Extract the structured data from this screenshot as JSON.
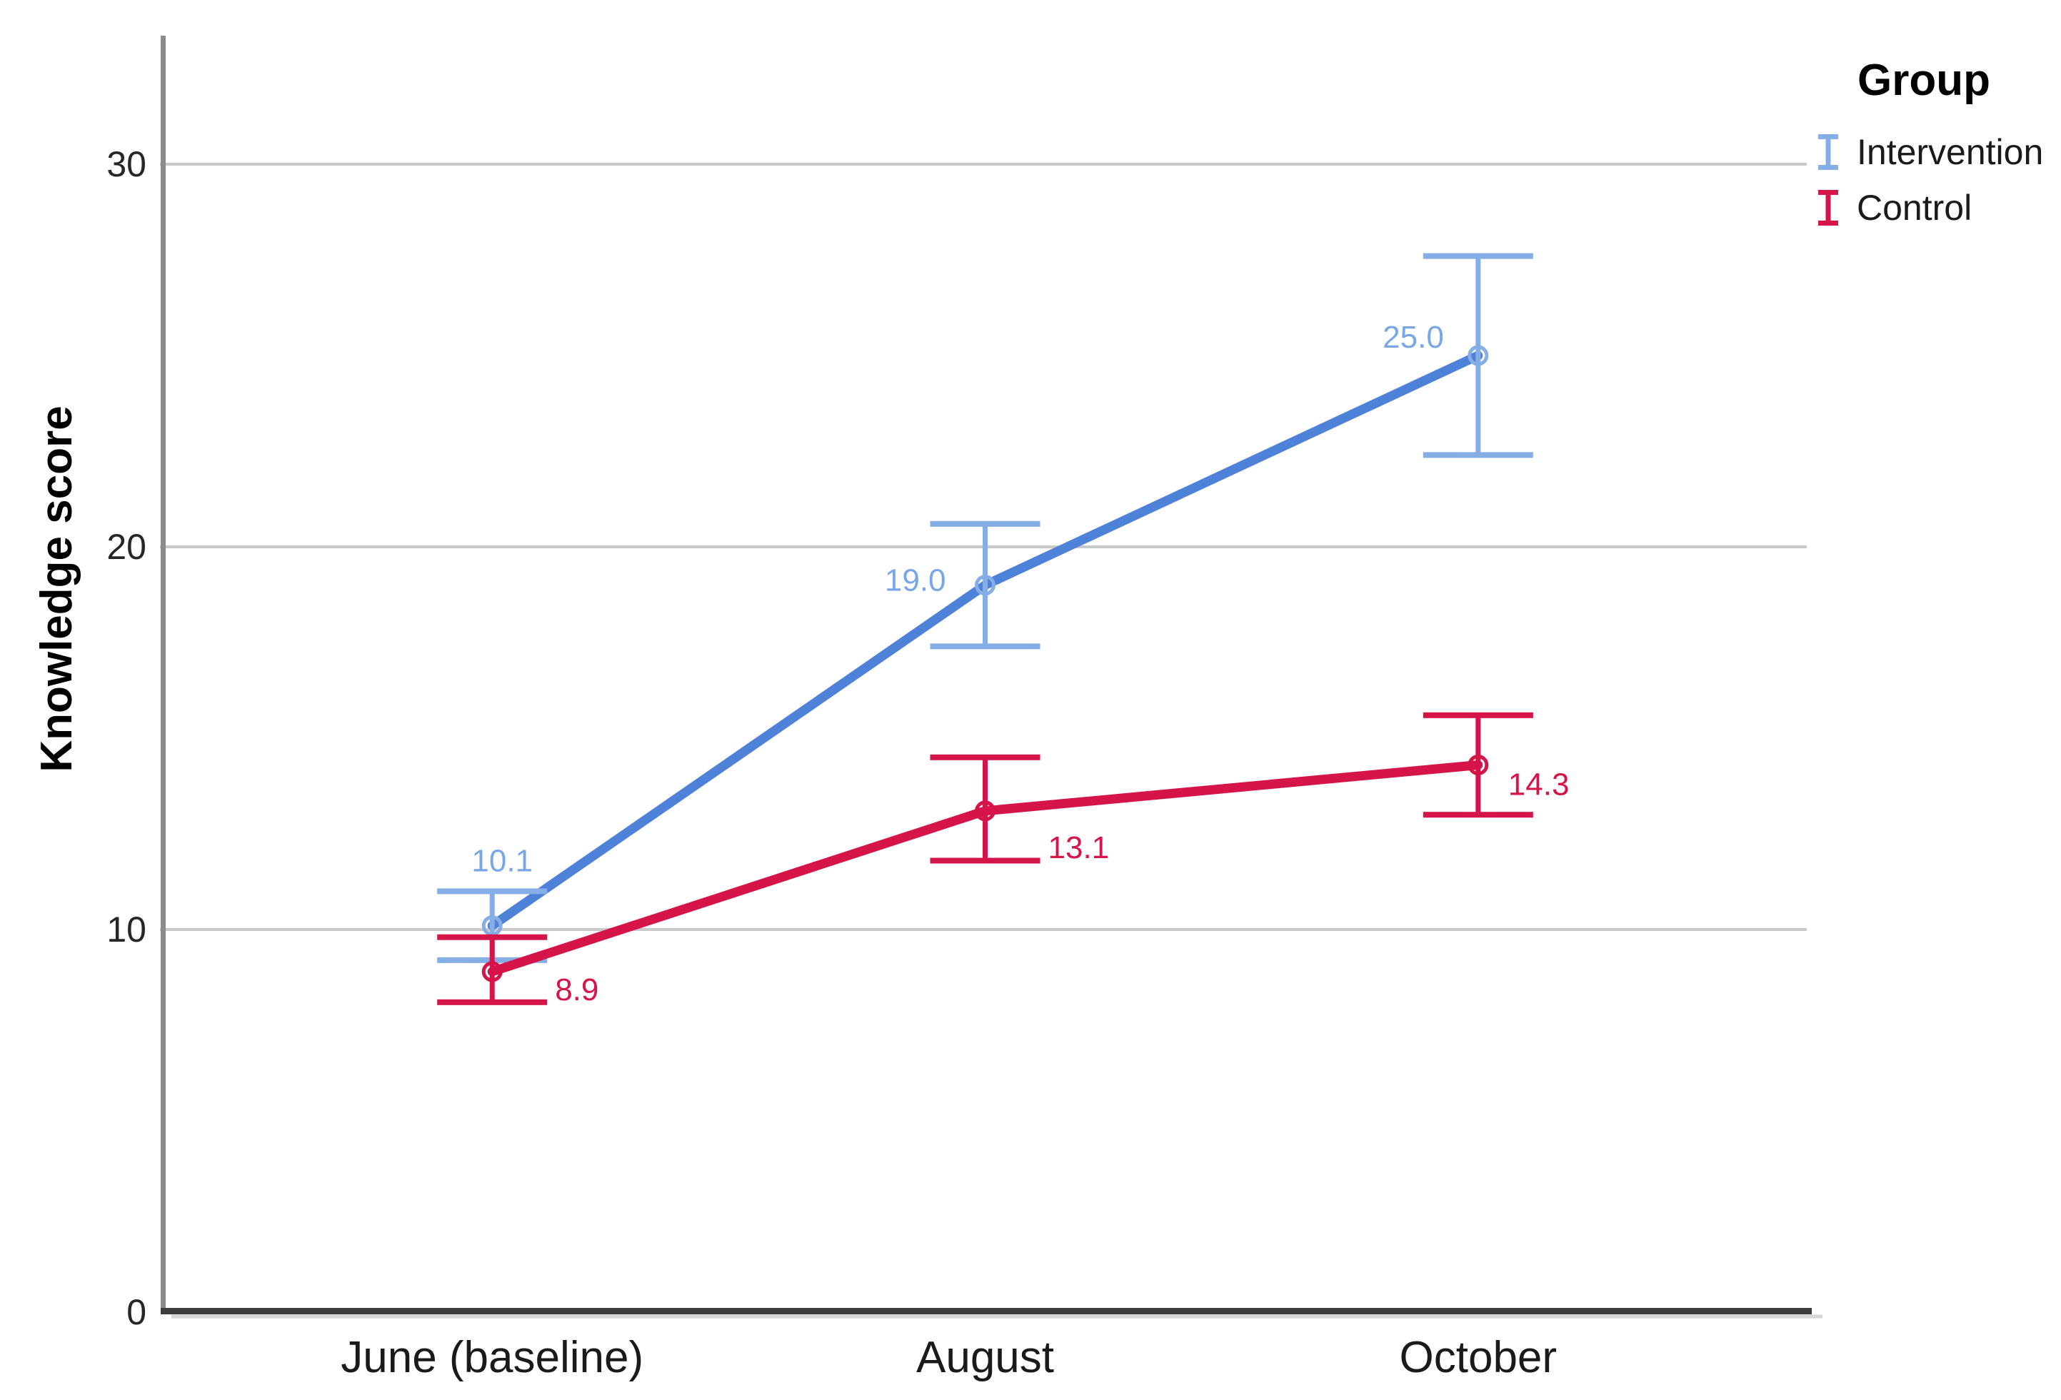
{
  "chart_data": {
    "type": "line",
    "title": "",
    "xlabel": "",
    "ylabel": "Knowledge score",
    "categories": [
      "June (baseline)",
      "August",
      "October"
    ],
    "y_ticks": [
      {
        "label": "0",
        "value": 0
      },
      {
        "label": "10",
        "value": 10
      },
      {
        "label": "20",
        "value": 20
      },
      {
        "label": "30",
        "value": 30
      }
    ],
    "grid_values": [
      10,
      20,
      30
    ],
    "ylim": [
      0,
      33.4
    ],
    "grid": true,
    "legend": {
      "title": "Group",
      "position": "top-right"
    },
    "series": [
      {
        "name": "Intervention",
        "color": "#4D82D8",
        "error_color": "#85ADE6",
        "label_color": "#79A7E5",
        "marker": "open-circle",
        "values": [
          10.1,
          19.0,
          25.0
        ],
        "ci": [
          [
            9.2,
            11.0
          ],
          [
            17.4,
            20.6
          ],
          [
            22.4,
            27.6
          ]
        ],
        "point_labels": [
          "10.1",
          "19.0",
          "25.0"
        ]
      },
      {
        "name": "Control",
        "color": "#D51449",
        "error_color": "#D51449",
        "label_color": "#D51449",
        "marker": "open-circle",
        "values": [
          8.9,
          13.1,
          14.3
        ],
        "ci": [
          [
            8.1,
            9.8
          ],
          [
            11.8,
            14.5
          ],
          [
            13.0,
            15.6
          ]
        ],
        "point_labels": [
          "8.9",
          "13.1",
          "14.3"
        ]
      }
    ]
  }
}
